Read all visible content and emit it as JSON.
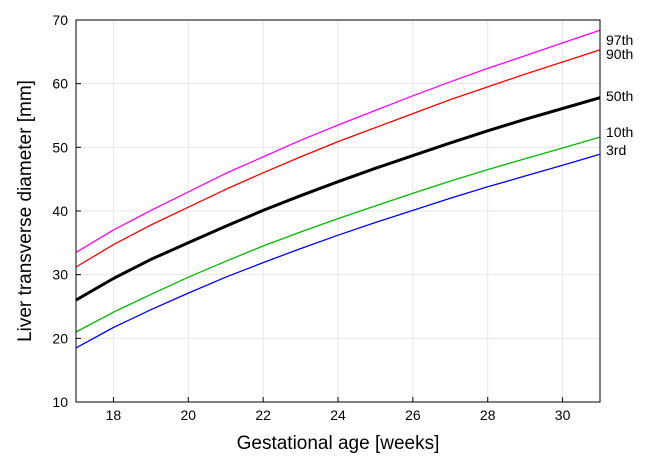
{
  "chart_data": {
    "type": "line",
    "title": "",
    "xlabel": "Gestational age [weeks]",
    "ylabel": "Liver transverse diameter [mm]",
    "xlim": [
      17,
      31
    ],
    "ylim": [
      10,
      70
    ],
    "x_ticks": [
      18,
      20,
      22,
      24,
      26,
      28,
      30
    ],
    "y_ticks": [
      10,
      20,
      30,
      40,
      50,
      60,
      70
    ],
    "grid": true,
    "legend": "none",
    "x": [
      17,
      18,
      19,
      20,
      21,
      22,
      23,
      24,
      25,
      26,
      27,
      28,
      29,
      30,
      31
    ],
    "series": [
      {
        "name": "97th",
        "color": "#ff00ff",
        "width": 1.3,
        "values": [
          33.5,
          37.0,
          40.1,
          43.0,
          45.9,
          48.5,
          51.1,
          53.5,
          55.8,
          58.1,
          60.3,
          62.4,
          64.4,
          66.4,
          68.4
        ]
      },
      {
        "name": "90th",
        "color": "#ff0000",
        "width": 1.3,
        "values": [
          31.2,
          34.7,
          37.8,
          40.6,
          43.4,
          46.0,
          48.5,
          50.9,
          53.1,
          55.3,
          57.5,
          59.5,
          61.5,
          63.4,
          65.3
        ]
      },
      {
        "name": "50th",
        "color": "#000000",
        "width": 3,
        "values": [
          26.0,
          29.4,
          32.4,
          35.0,
          37.6,
          40.1,
          42.4,
          44.6,
          46.7,
          48.7,
          50.7,
          52.6,
          54.4,
          56.1,
          57.8
        ]
      },
      {
        "name": "10th",
        "color": "#00bb00",
        "width": 1.3,
        "values": [
          21.0,
          24.1,
          26.9,
          29.6,
          32.1,
          34.5,
          36.7,
          38.8,
          40.8,
          42.8,
          44.7,
          46.5,
          48.2,
          49.9,
          51.6
        ]
      },
      {
        "name": "3rd",
        "color": "#0000ff",
        "width": 1.3,
        "values": [
          18.5,
          21.7,
          24.5,
          27.1,
          29.6,
          31.9,
          34.1,
          36.2,
          38.2,
          40.1,
          42.0,
          43.8,
          45.5,
          47.2,
          48.9
        ]
      }
    ]
  }
}
